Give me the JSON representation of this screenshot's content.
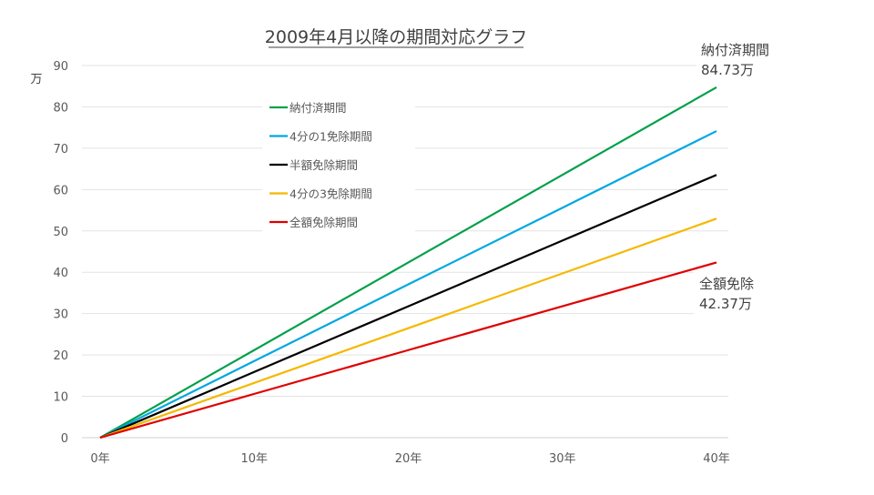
{
  "chart_data": {
    "type": "line",
    "title": "2009年4月以降の期間対応グラフ",
    "ylabel": "万",
    "xlabel": "",
    "x": [
      0,
      10,
      20,
      30,
      40
    ],
    "x_tick_labels": [
      "0年",
      "10年",
      "20年",
      "30年",
      "40年"
    ],
    "y_ticks": [
      0,
      10,
      20,
      30,
      40,
      50,
      60,
      70,
      80,
      90
    ],
    "xlim": [
      0,
      40
    ],
    "ylim": [
      0,
      90
    ],
    "grid": "horizontal",
    "legend": "top-left",
    "series": [
      {
        "name": "納付済期間",
        "color": "#00a04a",
        "values": [
          0,
          21.18,
          42.37,
          63.55,
          84.73
        ]
      },
      {
        "name": "4分の1免除期間",
        "color": "#00a8e0",
        "values": [
          0,
          18.53,
          37.07,
          55.6,
          74.14
        ]
      },
      {
        "name": "半額免除期間",
        "color": "#000000",
        "values": [
          0,
          15.89,
          31.78,
          47.66,
          63.55
        ]
      },
      {
        "name": "4分の3免除期間",
        "color": "#f5b800",
        "values": [
          0,
          13.24,
          26.48,
          39.72,
          52.96
        ]
      },
      {
        "name": "全額免除期間",
        "color": "#e00000",
        "values": [
          0,
          10.59,
          21.18,
          31.78,
          42.37
        ]
      }
    ],
    "annotations": [
      {
        "line1": "納付済期間",
        "line2": "84.73万"
      },
      {
        "line1": "全額免除",
        "line2": "42.37万"
      }
    ]
  }
}
